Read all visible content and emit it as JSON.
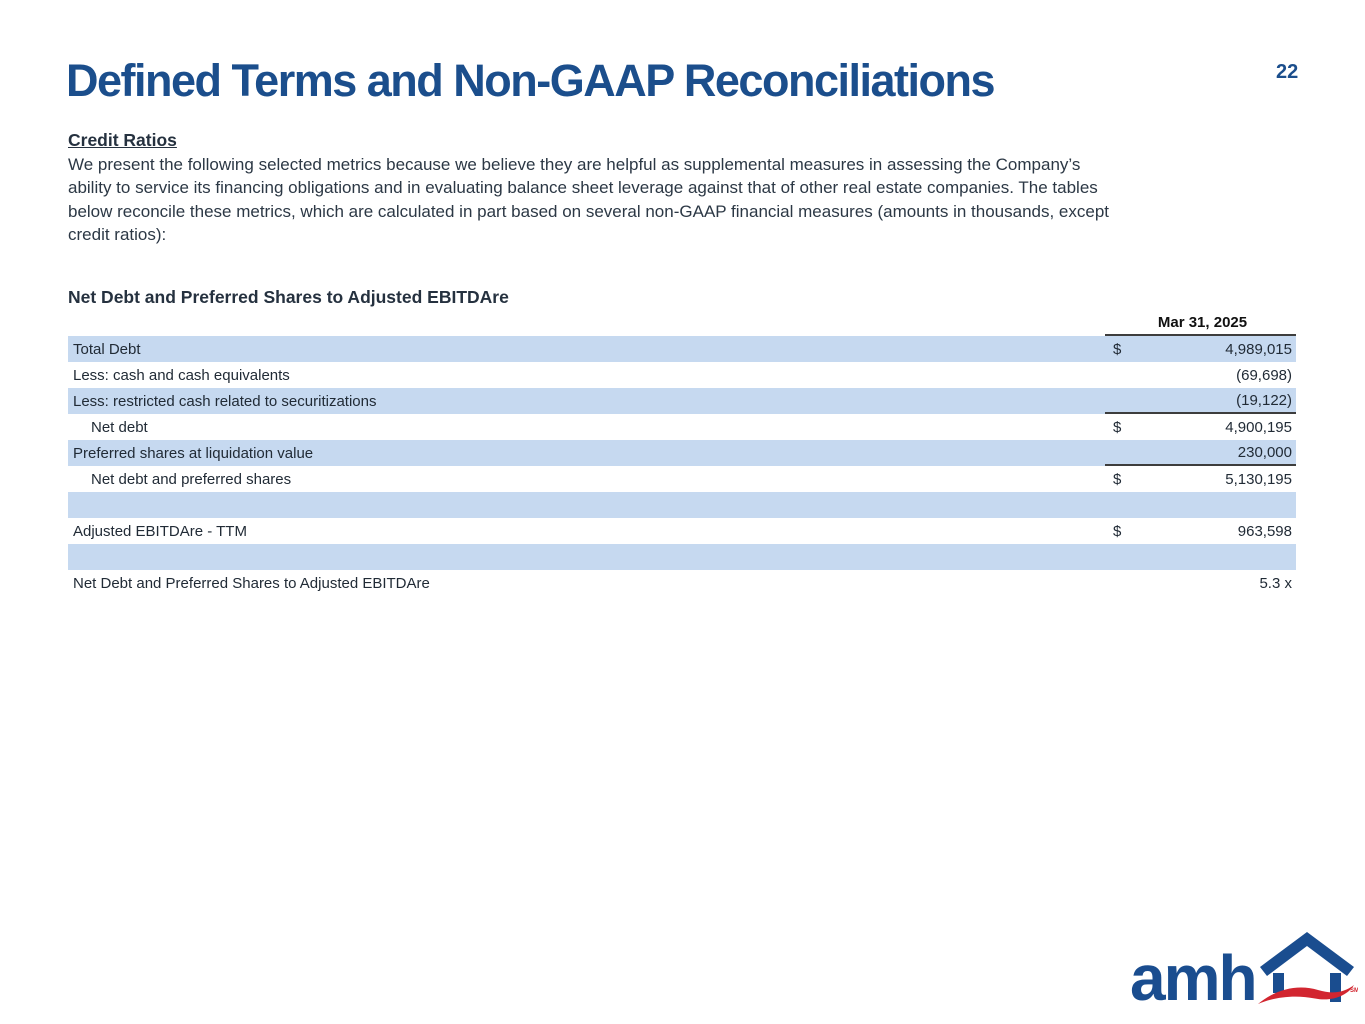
{
  "page": {
    "title": "Defined Terms and Non-GAAP Reconciliations",
    "page_number": "22"
  },
  "colors": {
    "title_blue": "#1b4e8c",
    "row_shade_blue": "#c6d9f0",
    "logo_blue": "#1a4d8f",
    "logo_red": "#d22630",
    "rule_dark": "#3d3d3d"
  },
  "section": {
    "heading": "Credit Ratios",
    "body_lines": [
      "We present the following selected metrics because we believe they are helpful as supplemental measures in assessing the Company’s",
      "ability to service its financing obligations and in evaluating balance sheet leverage against that of other real estate companies. The tables",
      "below reconcile these metrics, which are calculated in part based on several non-GAAP financial measures (amounts in thousands, except",
      "credit ratios):"
    ]
  },
  "table": {
    "title": "Net Debt and Preferred Shares to Adjusted EBITDAre",
    "column_header": "Mar 31, 2025",
    "rows": [
      {
        "label": "Total Debt",
        "dollar": "$",
        "value": "4,989,015",
        "shade": true,
        "rule": false,
        "indent": false
      },
      {
        "label": "Less: cash and cash equivalents",
        "dollar": "",
        "value": "(69,698)",
        "shade": false,
        "rule": false,
        "indent": false
      },
      {
        "label": "Less: restricted cash related to securitizations",
        "dollar": "",
        "value": "(19,122)",
        "shade": true,
        "rule": true,
        "indent": false
      },
      {
        "label": "Net debt",
        "dollar": "$",
        "value": "4,900,195",
        "shade": false,
        "rule": false,
        "indent": true
      },
      {
        "label": "Preferred shares at liquidation value",
        "dollar": "",
        "value": "230,000",
        "shade": true,
        "rule": true,
        "indent": false
      },
      {
        "label": "Net debt and preferred shares",
        "dollar": "$",
        "value": "5,130,195",
        "shade": false,
        "rule": false,
        "indent": true
      },
      {
        "label": "",
        "dollar": "",
        "value": "",
        "shade": true,
        "rule": false,
        "indent": false
      },
      {
        "label": "Adjusted EBITDAre - TTM",
        "dollar": "$",
        "value": "963,598",
        "shade": false,
        "rule": false,
        "indent": false
      },
      {
        "label": "",
        "dollar": "",
        "value": "",
        "shade": true,
        "rule": false,
        "indent": false
      },
      {
        "label": "Net Debt and Preferred Shares to Adjusted EBITDAre",
        "dollar": "",
        "value": "5.3 x",
        "shade": false,
        "rule": false,
        "indent": false
      }
    ]
  },
  "footer": {
    "logo_text": "amh",
    "logo_mark": "SM"
  }
}
